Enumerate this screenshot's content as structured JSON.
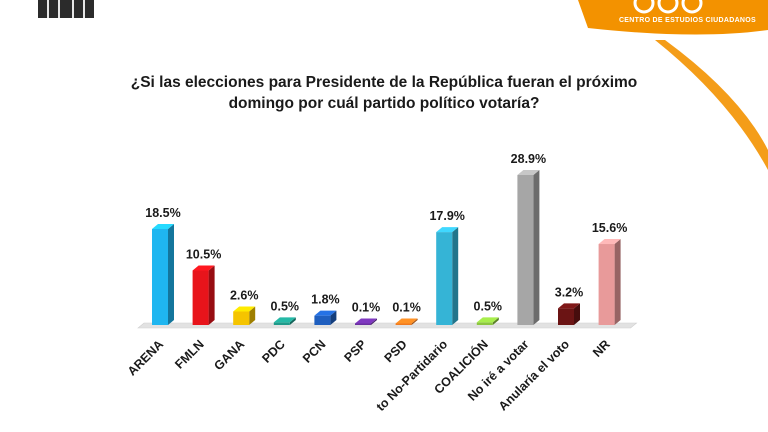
{
  "header": {
    "brand_subtitle": "CENTRO DE ESTUDIOS CIUDADANOS",
    "brand_color": "#f39200"
  },
  "question": {
    "line1": "¿Si las elecciones para Presidente de la República fueran el próximo",
    "line2": "domingo por cuál partido político votaría?"
  },
  "chart_data": {
    "type": "bar",
    "title": "¿Si las elecciones para Presidente de la República fueran el próximo domingo por cuál partido político votaría?",
    "categories": [
      "ARENA",
      "FMLN",
      "GANA",
      "PDC",
      "PCN",
      "PSP",
      "PSD",
      "Voto No-Partidario",
      "COALICIÓN",
      "No iré a votar",
      "Anularía el voto",
      "NR"
    ],
    "display_categories": [
      "ARENA",
      "FMLN",
      "GANA",
      "PDC",
      "PCN",
      "PSP",
      "PSD",
      "to No-Partidario",
      "COALICIÓN",
      "No iré a votar",
      "Anularía el voto",
      "NR"
    ],
    "values": [
      18.5,
      10.5,
      2.6,
      0.5,
      1.8,
      0.1,
      0.1,
      17.9,
      0.5,
      28.9,
      3.2,
      15.6
    ],
    "labels": [
      "18.5%",
      "10.5%",
      "2.6%",
      "0.5%",
      "1.8%",
      "0.1%",
      "0.1%",
      "17.9%",
      "0.5%",
      "28.9%",
      "3.2%",
      "15.6%"
    ],
    "colors": [
      "#1fb6f0",
      "#e8141b",
      "#f5c400",
      "#1f9a8a",
      "#1f5fbf",
      "#6a2fa0",
      "#f07a1f",
      "#35b4d6",
      "#8cc63f",
      "#a6a6a6",
      "#6b1414",
      "#e89a9a"
    ],
    "ylim": [
      0,
      30
    ],
    "grid": false,
    "legend": "none"
  }
}
